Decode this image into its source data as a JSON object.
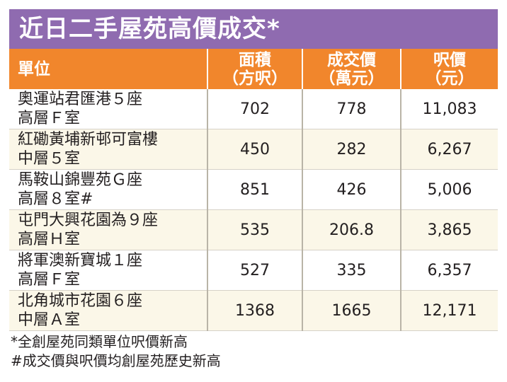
{
  "title": "近日二手屋苑高價成交*",
  "headers": {
    "unit": "單位",
    "area": [
      "面積",
      "（方呎）"
    ],
    "price": [
      "成交價",
      "（萬元）"
    ],
    "psf": [
      "呎價",
      "（元）"
    ]
  },
  "rows": [
    {
      "unit": [
        "奧運站君匯港５座",
        "高層Ｆ室"
      ],
      "area": "702",
      "price": "778",
      "psf": "11,083"
    },
    {
      "unit": [
        "紅磡黃埔新邨可富樓",
        "中層５室"
      ],
      "area": "450",
      "price": "282",
      "psf": "6,267"
    },
    {
      "unit": [
        "馬鞍山錦豐苑Ｇ座",
        "高層８室#"
      ],
      "area": "851",
      "price": "426",
      "psf": "5,006"
    },
    {
      "unit": [
        "屯門大興花園為９座",
        "高層Ｈ室"
      ],
      "area": "535",
      "price": "206.8",
      "psf": "3,865"
    },
    {
      "unit": [
        "將軍澳新寶城１座",
        "高層Ｆ室"
      ],
      "area": "527",
      "price": "335",
      "psf": "6,357"
    },
    {
      "unit": [
        "北角城市花園６座",
        "中層Ａ室"
      ],
      "area": "1368",
      "price": "1665",
      "psf": "12,171"
    }
  ],
  "notes": [
    "*全創屋苑同類單位呎價新高",
    "#成交價與呎價均創屋苑歷史新高"
  ],
  "colors": {
    "title_bg": "#8f6bb0",
    "header_bg": "#f1862c",
    "stripe": "#fbf7e8",
    "divider": "#b9b4a7"
  }
}
